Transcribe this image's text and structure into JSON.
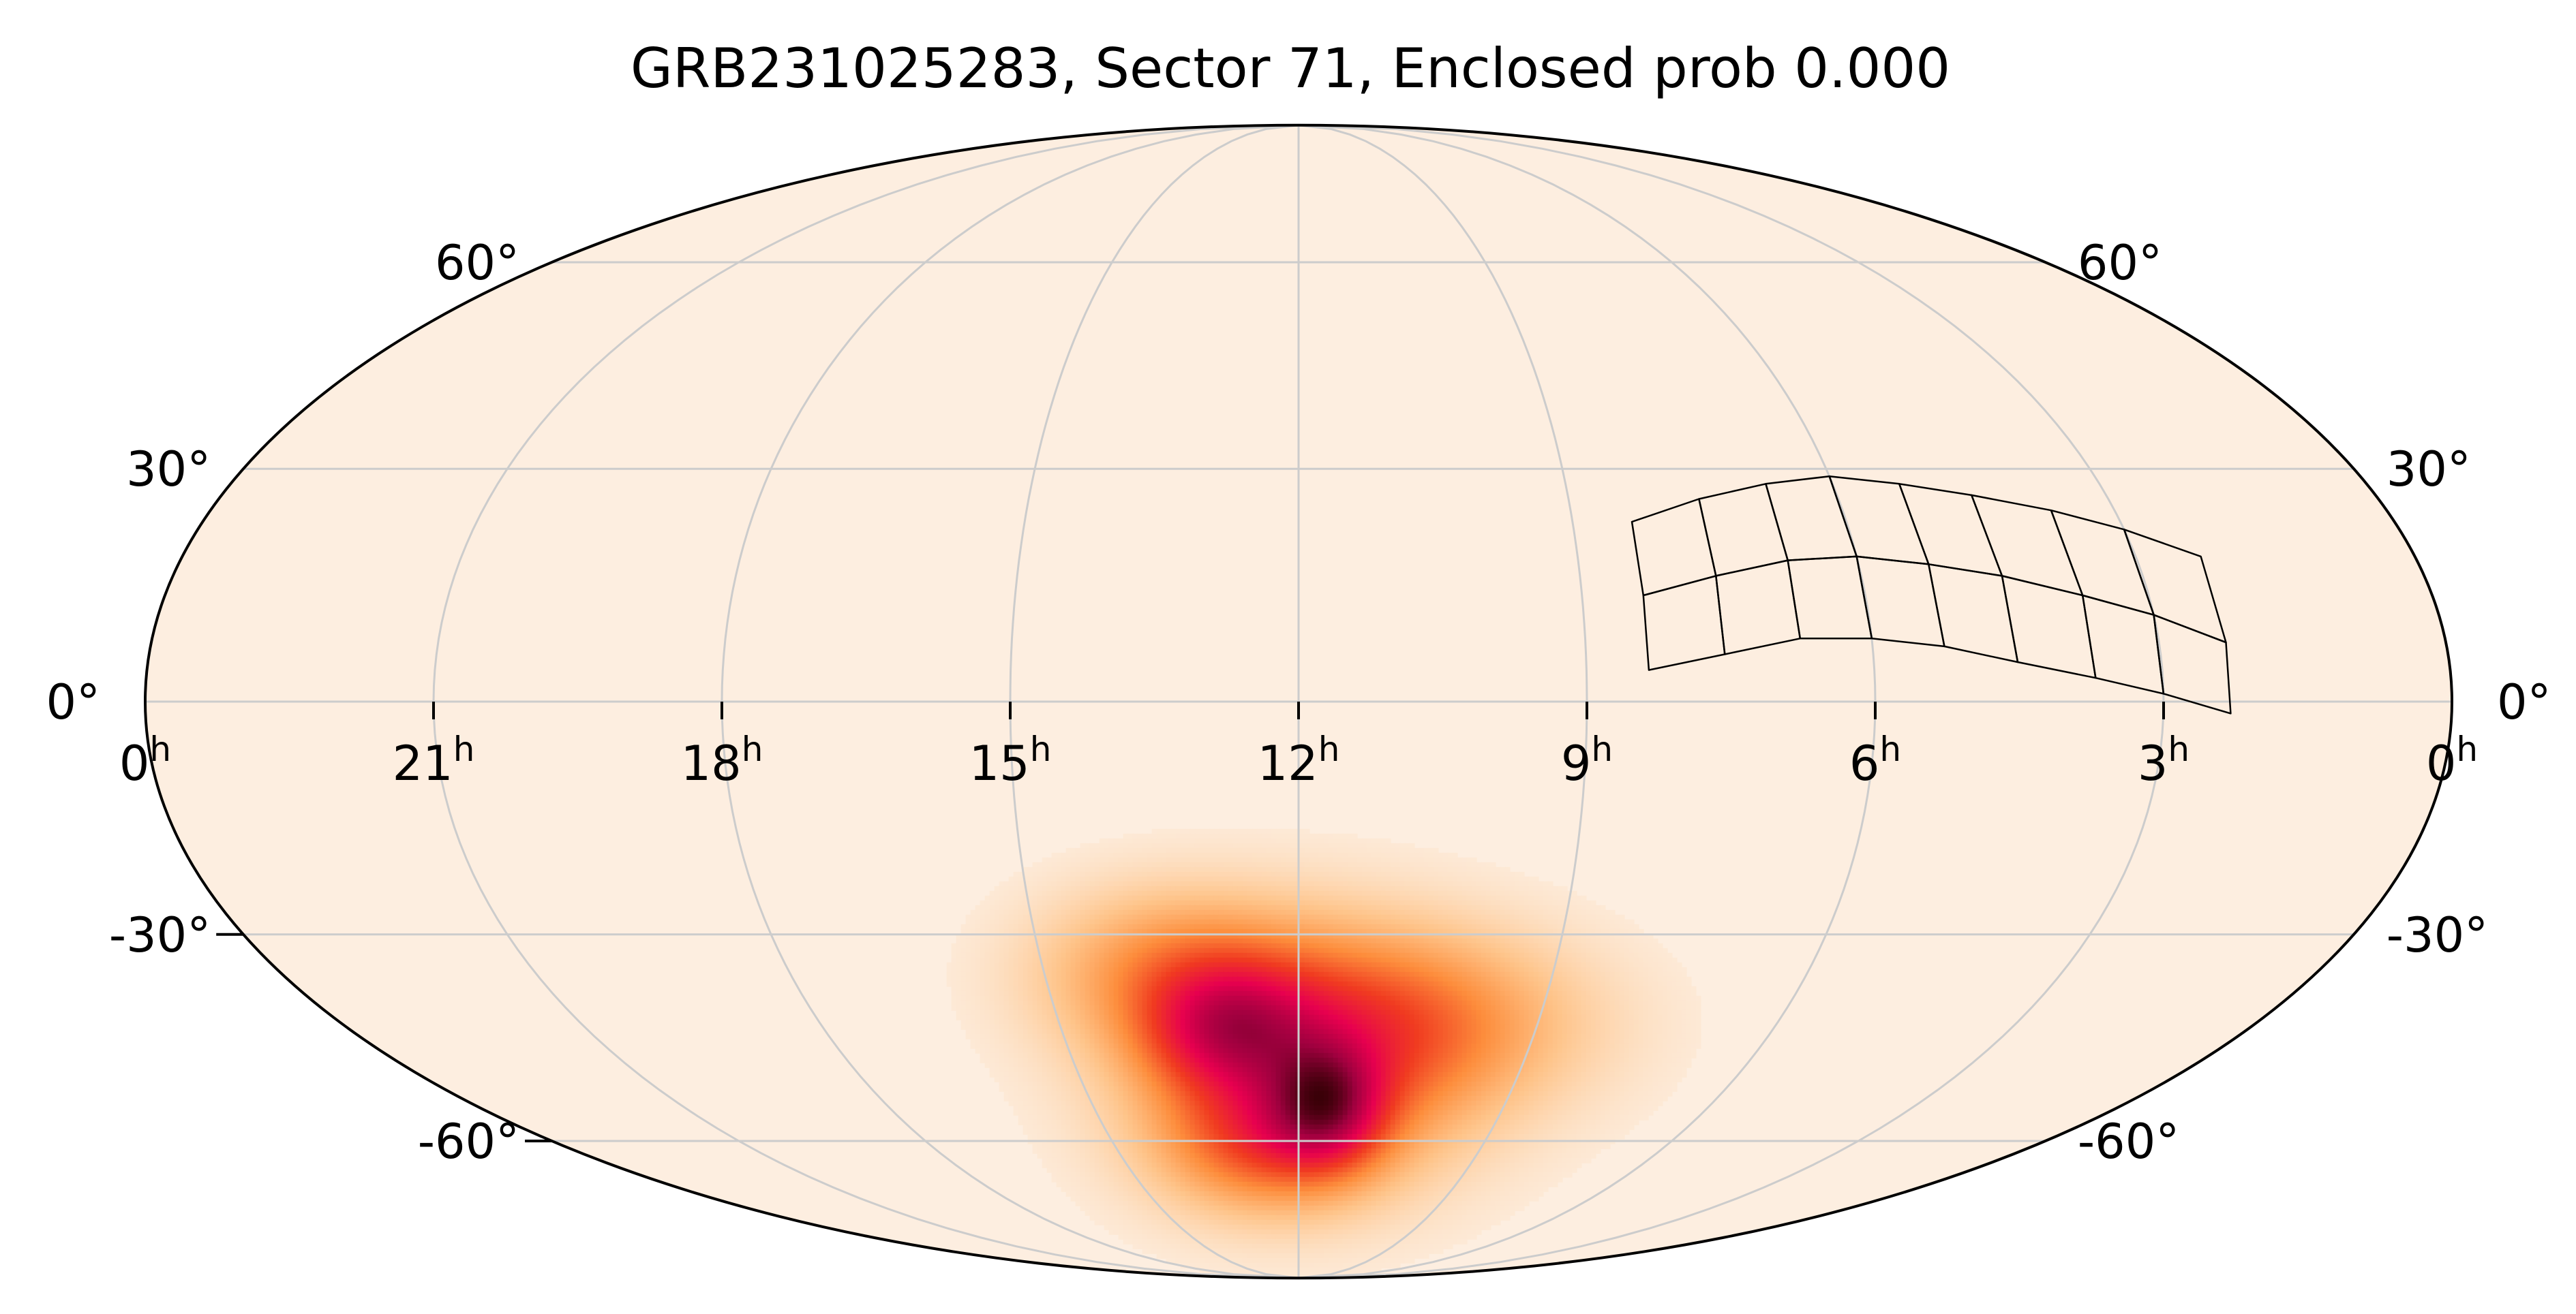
{
  "title": "GRB231025283, Sector 71, Enclosed prob 0.000",
  "chart_data": {
    "type": "heatmap",
    "projection": "mollweide",
    "title": "GRB231025283, Sector 71, Enclosed prob 0.000",
    "grid": true,
    "colors": {
      "background": "#fdeee0",
      "grid": "#cccccc",
      "outline": "#000000",
      "colormap": [
        "#fdeee0",
        "#fec48a",
        "#fd8d3c",
        "#f03b20",
        "#e7004f",
        "#a0003f",
        "#3a0008"
      ]
    },
    "ra_ticks": [
      {
        "ra_h": 24,
        "label": "0",
        "sup": "h"
      },
      {
        "ra_h": 21,
        "label": "21",
        "sup": "h"
      },
      {
        "ra_h": 18,
        "label": "18",
        "sup": "h"
      },
      {
        "ra_h": 15,
        "label": "15",
        "sup": "h"
      },
      {
        "ra_h": 12,
        "label": "12",
        "sup": "h"
      },
      {
        "ra_h": 9,
        "label": "9",
        "sup": "h"
      },
      {
        "ra_h": 6,
        "label": "6",
        "sup": "h"
      },
      {
        "ra_h": 3,
        "label": "3",
        "sup": "h"
      },
      {
        "ra_h": 0,
        "label": "0",
        "sup": "h"
      }
    ],
    "dec_ticks_left": [
      {
        "dec": 60,
        "label": "60°"
      },
      {
        "dec": 30,
        "label": "30°"
      },
      {
        "dec": 0,
        "label": "0°"
      },
      {
        "dec": -30,
        "label": "-30°"
      },
      {
        "dec": -60,
        "label": "-60°"
      }
    ],
    "dec_ticks_right": [
      {
        "dec": 60,
        "label": "60°"
      },
      {
        "dec": 30,
        "label": "30°"
      },
      {
        "dec": 0,
        "label": "0°"
      },
      {
        "dec": -30,
        "label": "-30°"
      },
      {
        "dec": -60,
        "label": "-60°"
      }
    ],
    "probability_map": {
      "peak": {
        "ra_h": 11.6,
        "dec": -54,
        "level": 1.0
      },
      "components": [
        {
          "ra_h": 11.6,
          "dec": -54,
          "sigma_ra_h": 0.55,
          "sigma_dec": 6,
          "weight": 1.0
        },
        {
          "ra_h": 12.9,
          "dec": -43,
          "sigma_ra_h": 0.7,
          "sigma_dec": 6,
          "weight": 0.8
        },
        {
          "ra_h": 11.9,
          "dec": -47,
          "sigma_ra_h": 1.4,
          "sigma_dec": 11,
          "weight": 0.75
        },
        {
          "ra_h": 12.5,
          "dec": -60,
          "sigma_ra_h": 1.1,
          "sigma_dec": 7,
          "weight": 0.6
        },
        {
          "ra_h": 10.6,
          "dec": -42,
          "sigma_ra_h": 1.4,
          "sigma_dec": 8,
          "weight": 0.45
        },
        {
          "ra_h": 13.5,
          "dec": -35,
          "sigma_ra_h": 1.0,
          "sigma_dec": 7,
          "weight": 0.45
        }
      ]
    },
    "sector_footprint": {
      "sector": 71,
      "columns_ra_h": [
        8.35,
        7.55,
        6.75,
        6.0,
        5.25,
        4.5,
        3.7,
        3.0,
        2.3
      ],
      "row_edges_dec": [
        [
          23,
          13.5,
          4
        ],
        [
          26,
          16,
          6
        ],
        [
          28,
          18,
          8
        ],
        [
          29,
          18.5,
          8
        ],
        [
          28,
          17.5,
          7
        ],
        [
          26.5,
          16,
          5
        ],
        [
          24.5,
          13.5,
          3
        ],
        [
          22,
          11,
          1
        ],
        [
          18.5,
          7.5,
          -1.5
        ]
      ]
    }
  }
}
